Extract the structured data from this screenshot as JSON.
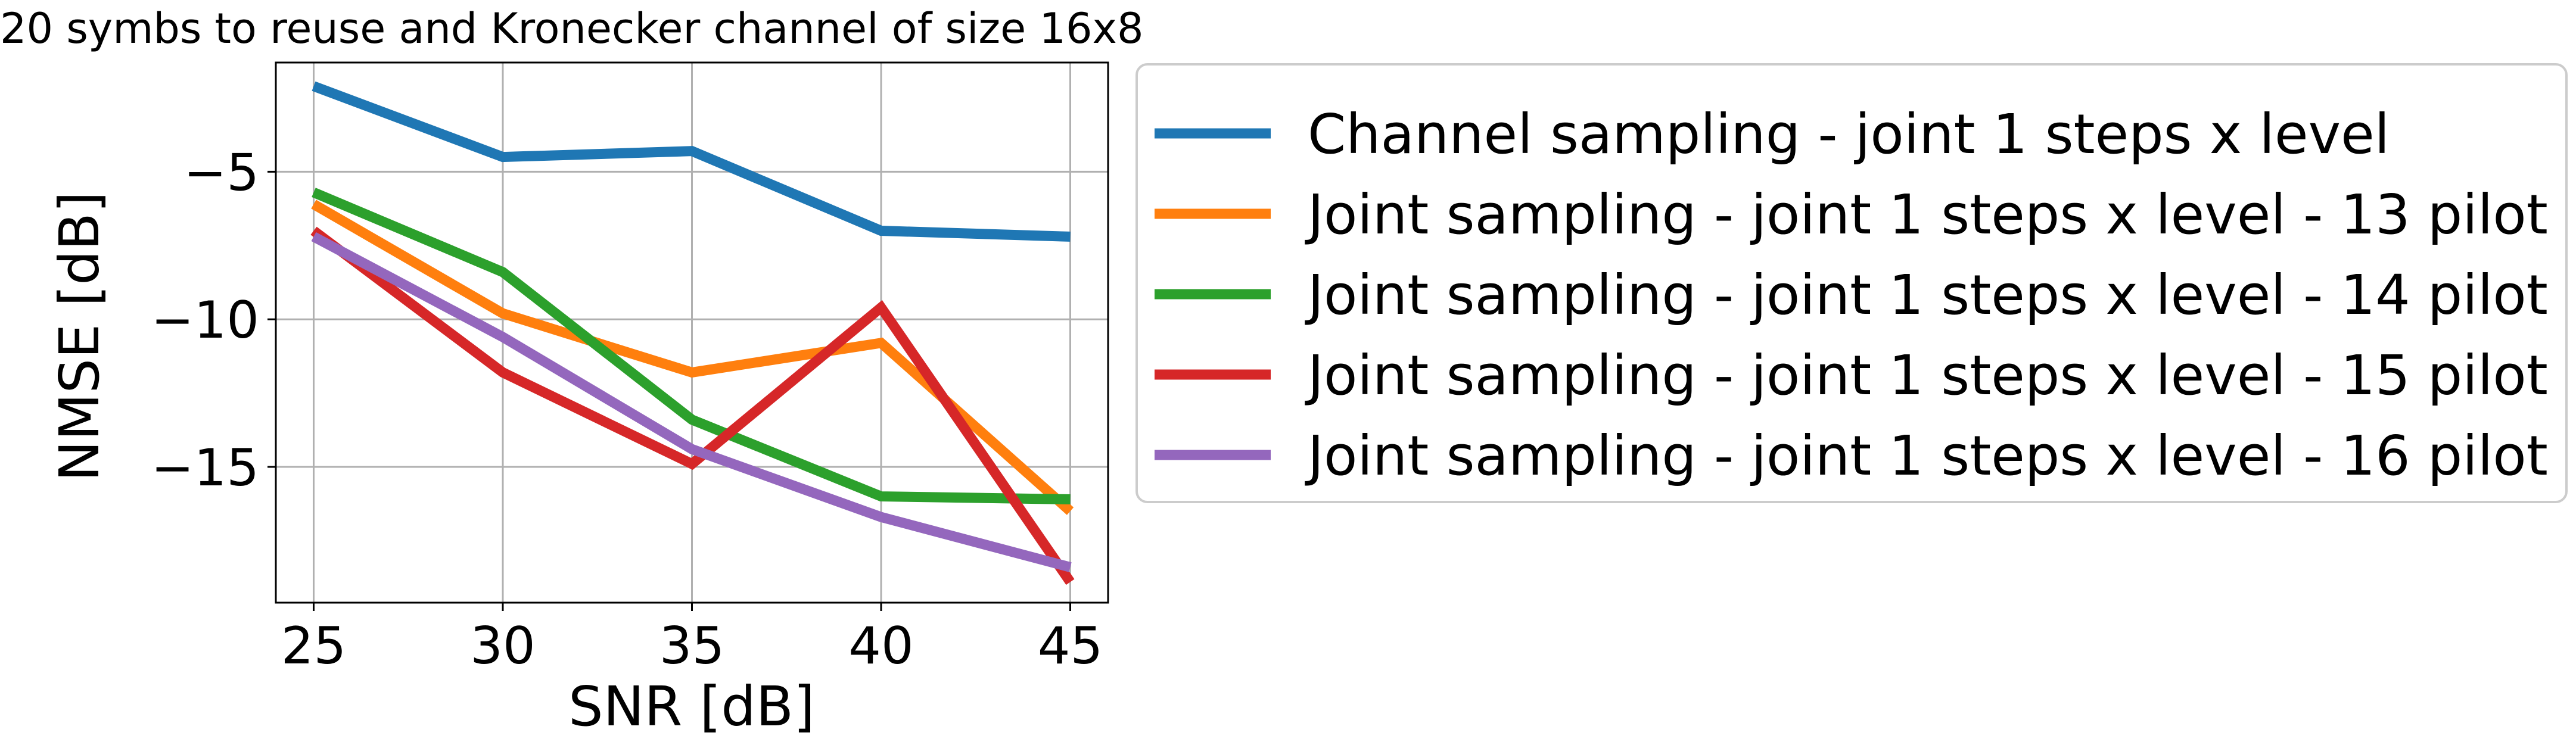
{
  "chart_data": {
    "type": "line",
    "title": "20 symbs to reuse and Kronecker channel of size 16x8",
    "xlabel": "SNR [dB]",
    "ylabel": "NMSE [dB]",
    "x": [
      25,
      30,
      35,
      40,
      45
    ],
    "xlim": [
      24,
      46
    ],
    "ylim": [
      -19.6,
      -1.3
    ],
    "xticks": [
      "25",
      "30",
      "35",
      "40",
      "45"
    ],
    "yticks": [
      {
        "value": -5,
        "label": "−5"
      },
      {
        "value": -10,
        "label": "−10"
      },
      {
        "value": -15,
        "label": "−15"
      }
    ],
    "grid": true,
    "legend_position": "outside-right",
    "series": [
      {
        "name": "Channel sampling - joint 1 steps x level",
        "color": "#1f77b4",
        "values": [
          -2.1,
          -4.5,
          -4.3,
          -7.0,
          -7.2
        ]
      },
      {
        "name": "Joint sampling - joint 1 steps x level - 13 pilot",
        "color": "#ff7f0e",
        "values": [
          -6.1,
          -9.8,
          -11.8,
          -10.8,
          -16.5
        ]
      },
      {
        "name": "Joint sampling - joint 1 steps x level - 14 pilot",
        "color": "#2ca02c",
        "values": [
          -5.7,
          -8.4,
          -13.4,
          -16.0,
          -16.1
        ]
      },
      {
        "name": "Joint sampling - joint 1 steps x level - 15 pilot",
        "color": "#d62728",
        "values": [
          -7.0,
          -11.8,
          -14.9,
          -9.6,
          -18.9
        ]
      },
      {
        "name": "Joint sampling - joint 1 steps x level - 16 pilot",
        "color": "#9467bd",
        "values": [
          -7.2,
          -10.6,
          -14.4,
          -16.7,
          -18.4
        ]
      }
    ]
  }
}
